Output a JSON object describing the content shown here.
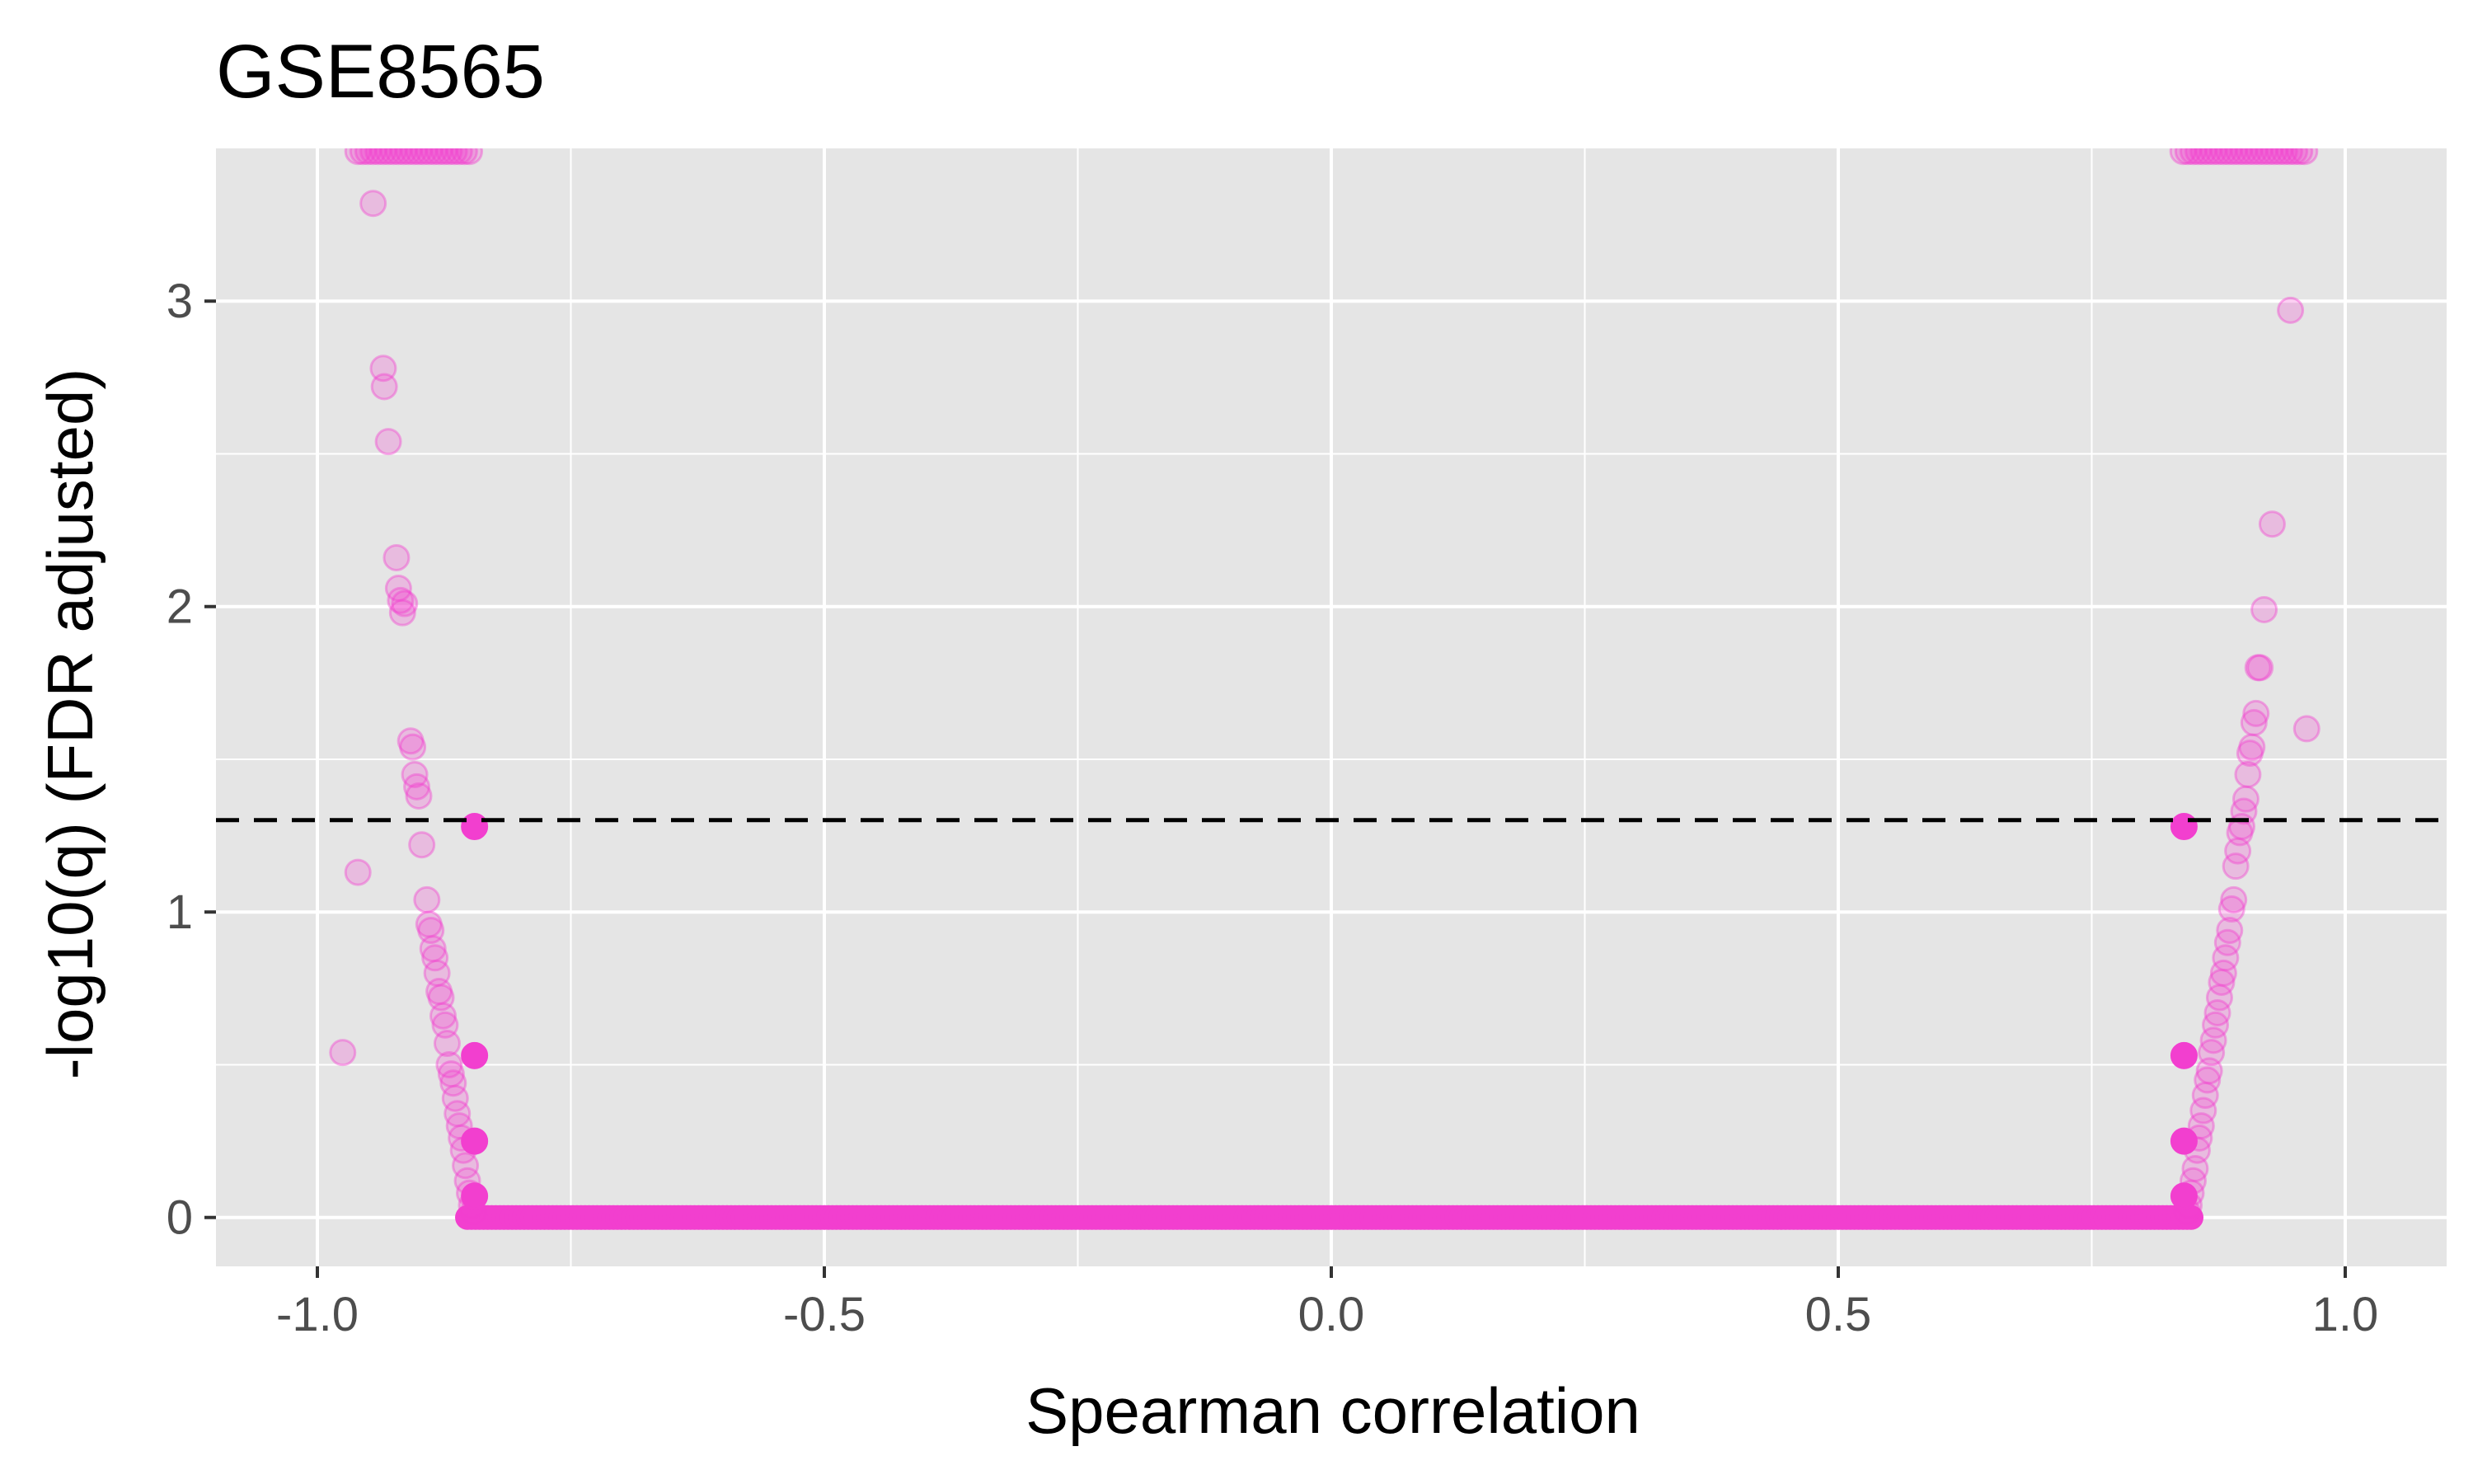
{
  "chart_data": {
    "type": "scatter",
    "title": "GSE8565",
    "xlabel": "Spearman correlation",
    "ylabel": "-log10(q) (FDR adjusted)",
    "xlim": [
      -1.1,
      1.1
    ],
    "ylim": [
      -0.16,
      3.5
    ],
    "x_ticks": [
      -1.0,
      -0.5,
      0.0,
      0.5,
      1.0
    ],
    "x_tick_labels": [
      "-1.0",
      "-0.5",
      "0.0",
      "0.5",
      "1.0"
    ],
    "y_ticks": [
      0,
      1,
      2,
      3
    ],
    "y_tick_labels": [
      "0",
      "1",
      "2",
      "3"
    ],
    "threshold_line": {
      "y": 1.301,
      "style": "dashed",
      "color": "#000000"
    },
    "grid": true,
    "panel_background": "#e5e5e5",
    "point_color": "#f23fcf",
    "series": [
      {
        "opacity": 0.25,
        "points": [
          [
            -0.96,
            3.49
          ],
          [
            -0.955,
            3.49
          ],
          [
            -0.95,
            3.49
          ],
          [
            -0.945,
            3.49
          ],
          [
            -0.94,
            3.49
          ],
          [
            -0.935,
            3.49
          ],
          [
            -0.93,
            3.49
          ],
          [
            -0.925,
            3.49
          ],
          [
            -0.92,
            3.49
          ],
          [
            -0.915,
            3.49
          ],
          [
            -0.91,
            3.49
          ],
          [
            -0.905,
            3.49
          ],
          [
            -0.9,
            3.49
          ],
          [
            -0.895,
            3.49
          ],
          [
            -0.89,
            3.49
          ],
          [
            -0.885,
            3.49
          ],
          [
            -0.88,
            3.49
          ],
          [
            -0.875,
            3.49
          ],
          [
            -0.87,
            3.49
          ],
          [
            -0.865,
            3.49
          ],
          [
            -0.86,
            3.49
          ],
          [
            -0.855,
            3.49
          ],
          [
            -0.85,
            3.49
          ],
          [
            -0.945,
            3.32
          ],
          [
            -0.935,
            2.78
          ],
          [
            -0.934,
            2.72
          ],
          [
            -0.93,
            2.54
          ],
          [
            -0.922,
            2.16
          ],
          [
            -0.92,
            2.06
          ],
          [
            -0.918,
            2.02
          ],
          [
            -0.916,
            1.98
          ],
          [
            -0.914,
            2.01
          ],
          [
            -0.908,
            1.56
          ],
          [
            -0.906,
            1.54
          ],
          [
            -0.904,
            1.45
          ],
          [
            -0.902,
            1.41
          ],
          [
            -0.9,
            1.38
          ],
          [
            -0.897,
            1.22
          ],
          [
            -0.892,
            1.04
          ],
          [
            -0.89,
            0.96
          ],
          [
            -0.888,
            0.94
          ],
          [
            -0.886,
            0.88
          ],
          [
            -0.884,
            0.85
          ],
          [
            -0.882,
            0.8
          ],
          [
            -0.88,
            0.74
          ],
          [
            -0.878,
            0.72
          ],
          [
            -0.876,
            0.66
          ],
          [
            -0.874,
            0.63
          ],
          [
            -0.872,
            0.57
          ],
          [
            -0.87,
            0.5
          ],
          [
            -0.868,
            0.47
          ],
          [
            -0.866,
            0.44
          ],
          [
            -0.864,
            0.39
          ],
          [
            -0.862,
            0.34
          ],
          [
            -0.86,
            0.3
          ],
          [
            -0.858,
            0.26
          ],
          [
            -0.856,
            0.22
          ],
          [
            -0.854,
            0.17
          ],
          [
            -0.852,
            0.12
          ],
          [
            -0.85,
            0.08
          ],
          [
            -0.848,
            0.04
          ],
          [
            -0.846,
            0.02
          ],
          [
            -0.96,
            1.13
          ],
          [
            -0.975,
            0.54
          ],
          [
            0.84,
            3.49
          ],
          [
            0.845,
            3.49
          ],
          [
            0.85,
            3.49
          ],
          [
            0.855,
            3.49
          ],
          [
            0.86,
            3.49
          ],
          [
            0.865,
            3.49
          ],
          [
            0.87,
            3.49
          ],
          [
            0.875,
            3.49
          ],
          [
            0.88,
            3.49
          ],
          [
            0.885,
            3.49
          ],
          [
            0.89,
            3.49
          ],
          [
            0.895,
            3.49
          ],
          [
            0.9,
            3.49
          ],
          [
            0.905,
            3.49
          ],
          [
            0.91,
            3.49
          ],
          [
            0.915,
            3.49
          ],
          [
            0.92,
            3.49
          ],
          [
            0.925,
            3.49
          ],
          [
            0.93,
            3.49
          ],
          [
            0.935,
            3.49
          ],
          [
            0.94,
            3.49
          ],
          [
            0.945,
            3.49
          ],
          [
            0.95,
            3.49
          ],
          [
            0.955,
            3.49
          ],
          [
            0.96,
            3.49
          ],
          [
            0.946,
            2.97
          ],
          [
            0.928,
            2.27
          ],
          [
            0.92,
            1.99
          ],
          [
            0.962,
            1.6
          ],
          [
            0.916,
            1.8
          ],
          [
            0.914,
            1.8
          ],
          [
            0.912,
            1.65
          ],
          [
            0.91,
            1.62
          ],
          [
            0.908,
            1.54
          ],
          [
            0.906,
            1.52
          ],
          [
            0.904,
            1.45
          ],
          [
            0.902,
            1.37
          ],
          [
            0.9,
            1.33
          ],
          [
            0.898,
            1.28
          ],
          [
            0.896,
            1.26
          ],
          [
            0.894,
            1.2
          ],
          [
            0.892,
            1.15
          ],
          [
            0.89,
            1.04
          ],
          [
            0.888,
            1.01
          ],
          [
            0.886,
            0.94
          ],
          [
            0.884,
            0.9
          ],
          [
            0.882,
            0.85
          ],
          [
            0.88,
            0.8
          ],
          [
            0.878,
            0.77
          ],
          [
            0.876,
            0.72
          ],
          [
            0.874,
            0.67
          ],
          [
            0.872,
            0.63
          ],
          [
            0.87,
            0.58
          ],
          [
            0.868,
            0.54
          ],
          [
            0.866,
            0.48
          ],
          [
            0.864,
            0.45
          ],
          [
            0.862,
            0.4
          ],
          [
            0.86,
            0.35
          ],
          [
            0.858,
            0.3
          ],
          [
            0.856,
            0.26
          ],
          [
            0.854,
            0.22
          ],
          [
            0.852,
            0.16
          ],
          [
            0.85,
            0.12
          ],
          [
            0.848,
            0.08
          ],
          [
            0.846,
            0.04
          ],
          [
            0.844,
            0.02
          ]
        ]
      },
      {
        "opacity": 1.0,
        "points": [
          [
            -0.845,
            1.28
          ],
          [
            -0.845,
            0.53
          ],
          [
            -0.845,
            0.25
          ],
          [
            -0.845,
            0.07
          ],
          [
            0.841,
            1.28
          ],
          [
            0.841,
            0.53
          ],
          [
            0.841,
            0.25
          ],
          [
            0.841,
            0.07
          ]
        ]
      }
    ],
    "zero_band": {
      "y": 0,
      "x_min": -0.852,
      "x_max": 0.848
    }
  }
}
